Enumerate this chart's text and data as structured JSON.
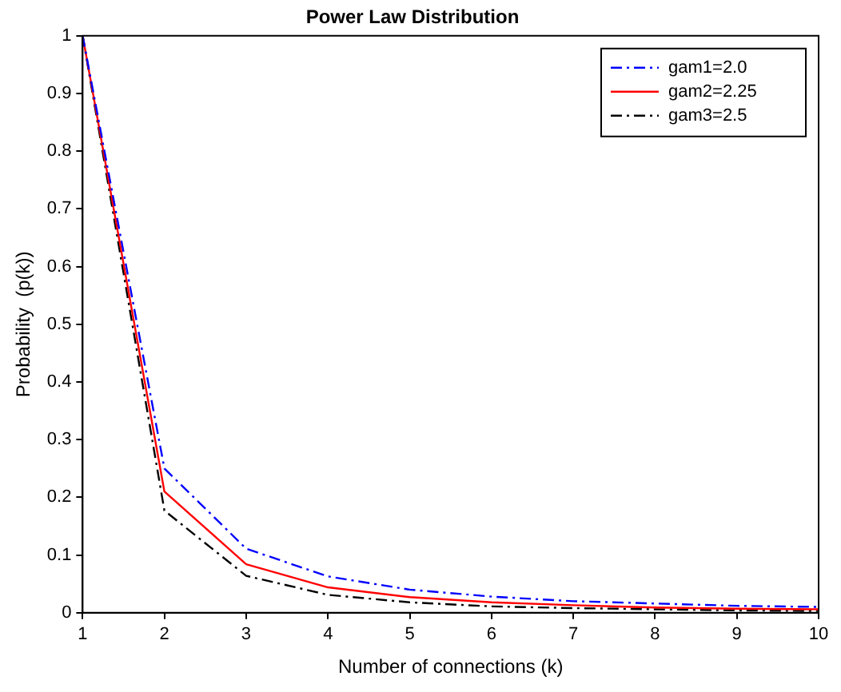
{
  "chart_data": {
    "type": "line",
    "title": "Power Law Distribution",
    "xlabel": "Number of connections (k)",
    "ylabel": "Probability  (p(k))",
    "x": [
      1,
      2,
      3,
      4,
      5,
      6,
      7,
      8,
      9,
      10
    ],
    "series": [
      {
        "name": "gam1=2.0",
        "color": "#0000ff",
        "line_style": "dashed",
        "values": [
          1,
          0.25,
          0.111,
          0.063,
          0.04,
          0.028,
          0.02,
          0.016,
          0.012,
          0.01
        ]
      },
      {
        "name": "gam2=2.25",
        "color": "#ff0000",
        "line_style": "solid",
        "values": [
          1,
          0.21,
          0.084,
          0.044,
          0.027,
          0.018,
          0.013,
          0.009,
          0.007,
          0.006
        ]
      },
      {
        "name": "gam3=2.5",
        "color": "#000000",
        "line_style": "dashed",
        "values": [
          1,
          0.177,
          0.064,
          0.031,
          0.018,
          0.011,
          0.008,
          0.006,
          0.004,
          0.003
        ]
      }
    ],
    "xlim": [
      1,
      10
    ],
    "xticks": [
      1,
      2,
      3,
      4,
      5,
      6,
      7,
      8,
      9,
      10
    ],
    "ylim": [
      0,
      1
    ],
    "yticks": [
      0,
      0.1,
      0.2,
      0.3,
      0.4,
      0.5,
      0.6,
      0.7,
      0.8,
      0.9,
      1
    ],
    "grid": false,
    "legend": "top right",
    "marker": "none"
  }
}
